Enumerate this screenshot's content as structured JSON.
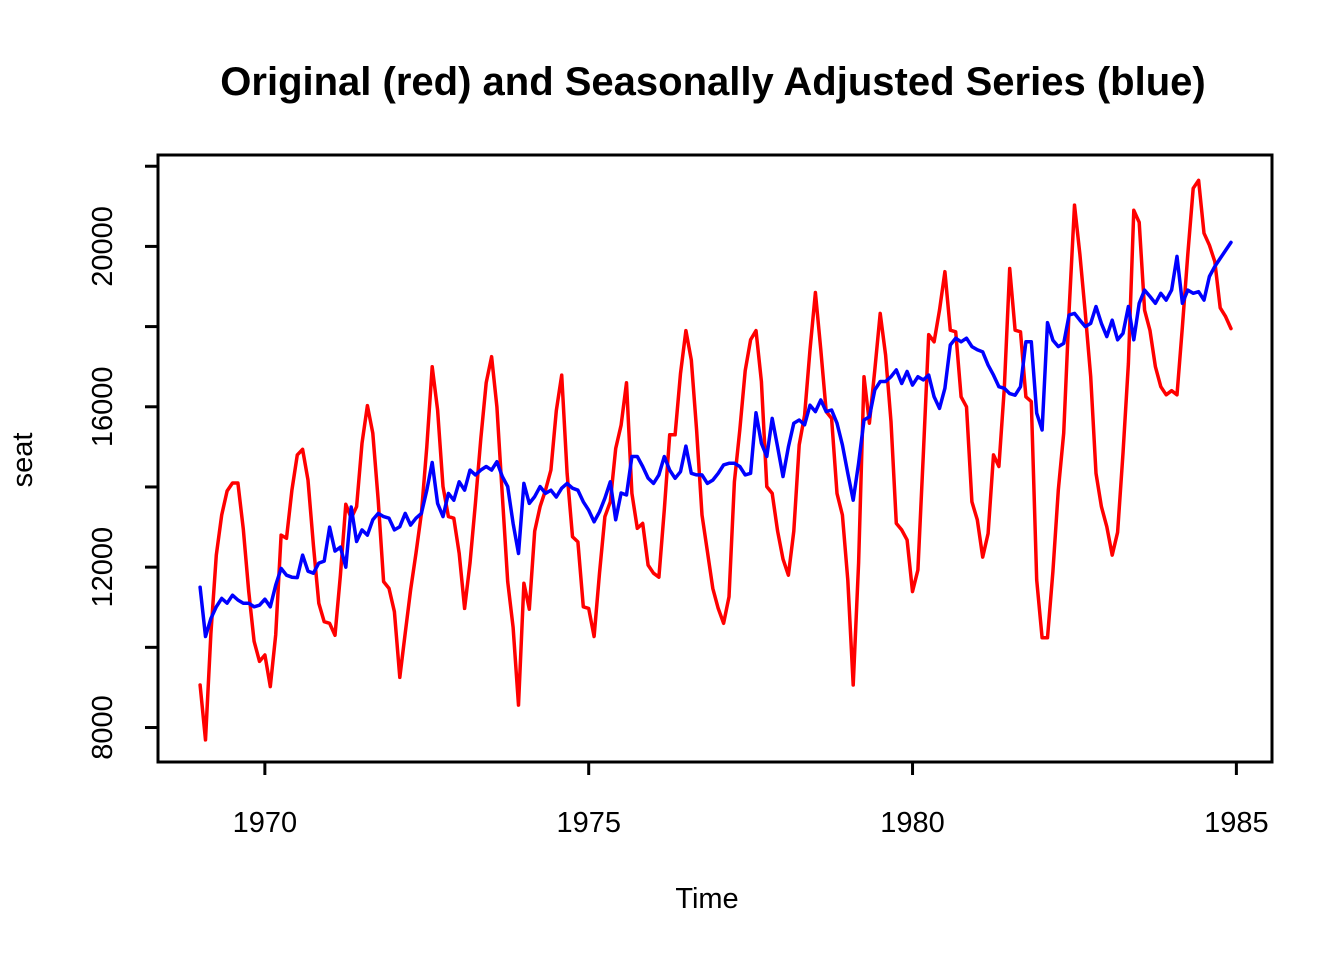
{
  "chart_data": {
    "type": "line",
    "title": "Original (red) and Seasonally Adjusted Series (blue)",
    "xlabel": "Time",
    "ylabel": "seat",
    "x_start_year": 1969,
    "frequency": 12,
    "xlim": [
      1968.35,
      1985.55
    ],
    "ylim": [
      7140,
      22280
    ],
    "xticks": [
      1970,
      1975,
      1980,
      1985
    ],
    "yticks": [
      8000,
      10000,
      12000,
      14000,
      16000,
      18000,
      20000,
      22000
    ],
    "ytick_labels_shown": [
      8000,
      12000,
      16000,
      20000
    ],
    "grid": "off",
    "legend": "none (colors named in title)",
    "series": [
      {
        "name": "Original",
        "color": "#FF0000",
        "values": [
          9060,
          7690,
          10350,
          12300,
          13300,
          13900,
          14100,
          14100,
          12950,
          11400,
          10150,
          9650,
          9810,
          9020,
          10310,
          12800,
          12720,
          13920,
          14800,
          14940,
          14170,
          12550,
          11100,
          10640,
          10600,
          10300,
          11800,
          13570,
          13220,
          13510,
          15090,
          16030,
          15340,
          13670,
          11640,
          11470,
          10890,
          9250,
          10350,
          11430,
          12350,
          13340,
          15000,
          17000,
          15920,
          14010,
          13260,
          13220,
          12340,
          10970,
          12100,
          13590,
          15200,
          16600,
          17250,
          16000,
          13800,
          11640,
          10500,
          8560,
          11600,
          10950,
          12900,
          13510,
          13920,
          14420,
          15900,
          16790,
          14340,
          12760,
          12630,
          11010,
          10970,
          10270,
          11850,
          13260,
          13630,
          14960,
          15540,
          16600,
          13840,
          12970,
          13090,
          12050,
          11850,
          11750,
          13430,
          15300,
          15300,
          16830,
          17900,
          17170,
          15420,
          13300,
          12390,
          11470,
          10970,
          10600,
          11260,
          14130,
          15420,
          16900,
          17670,
          17900,
          16630,
          14010,
          13840,
          12900,
          12200,
          11800,
          12900,
          15050,
          15790,
          17420,
          18850,
          17420,
          15880,
          15710,
          13840,
          13300,
          11680,
          9060,
          12100,
          16750,
          15590,
          16920,
          18330,
          17290,
          15630,
          13090,
          12930,
          12680,
          11390,
          11930,
          14800,
          17800,
          17620,
          18410,
          19370,
          17910,
          17870,
          16250,
          16000,
          13630,
          13180,
          12250,
          12840,
          14800,
          14510,
          16460,
          19450,
          17910,
          17870,
          16250,
          16130,
          11680,
          10240,
          10240,
          11890,
          13920,
          15340,
          18400,
          21030,
          19800,
          18330,
          16750,
          14340,
          13510,
          13010,
          12300,
          12870,
          14840,
          17080,
          20900,
          20600,
          18410,
          17900,
          17000,
          16500,
          16300,
          16400,
          16300,
          18000,
          19800,
          21450,
          21650,
          20330,
          20030,
          19620,
          18470,
          18250,
          17950
        ]
      },
      {
        "name": "Seasonally Adjusted",
        "color": "#0000FF",
        "values": [
          11500,
          10270,
          10720,
          11010,
          11220,
          11100,
          11300,
          11180,
          11100,
          11100,
          11010,
          11050,
          11200,
          11010,
          11550,
          11970,
          11800,
          11750,
          11740,
          12300,
          11900,
          11850,
          12100,
          12150,
          13000,
          12400,
          12500,
          12000,
          13500,
          12640,
          12930,
          12800,
          13180,
          13340,
          13260,
          13220,
          12930,
          13010,
          13340,
          13050,
          13220,
          13340,
          13920,
          14610,
          13590,
          13260,
          13840,
          13670,
          14130,
          13920,
          14420,
          14300,
          14420,
          14510,
          14420,
          14630,
          14260,
          14010,
          13090,
          12340,
          14090,
          13590,
          13760,
          14010,
          13840,
          13920,
          13750,
          13970,
          14090,
          13970,
          13920,
          13630,
          13420,
          13130,
          13380,
          13720,
          14130,
          13180,
          13850,
          13800,
          14760,
          14760,
          14510,
          14220,
          14090,
          14300,
          14760,
          14420,
          14215,
          14380,
          15020,
          14340,
          14300,
          14300,
          14090,
          14170,
          14340,
          14550,
          14590,
          14590,
          14510,
          14300,
          14340,
          15850,
          15090,
          14760,
          15710,
          15000,
          14260,
          15000,
          15590,
          15670,
          15550,
          16040,
          15880,
          16170,
          15880,
          15920,
          15590,
          15050,
          14340,
          13670,
          14590,
          15670,
          15750,
          16420,
          16630,
          16630,
          16750,
          16920,
          16580,
          16880,
          16540,
          16750,
          16670,
          16790,
          16250,
          15960,
          16460,
          17540,
          17710,
          17620,
          17710,
          17500,
          17420,
          17370,
          17040,
          16790,
          16500,
          16460,
          16330,
          16290,
          16500,
          17620,
          17620,
          15840,
          15420,
          18100,
          17660,
          17500,
          17580,
          18290,
          18330,
          18160,
          18000,
          18080,
          18500,
          18080,
          17750,
          18160,
          17670,
          17830,
          18500,
          17670,
          18580,
          18910,
          18750,
          18580,
          18830,
          18660,
          18910,
          19750,
          18580,
          18910,
          18830,
          18870,
          18660,
          19250,
          19500,
          19700,
          19900,
          20100
        ]
      }
    ]
  }
}
